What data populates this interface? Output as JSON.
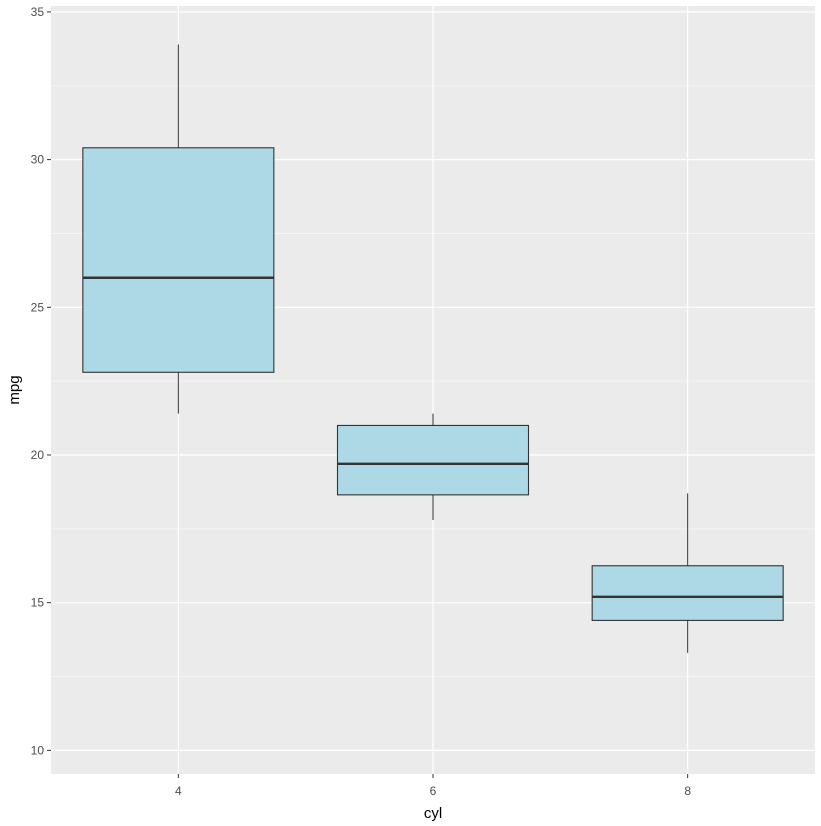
{
  "chart_data": {
    "type": "boxplot",
    "title": "",
    "xlabel": "cyl",
    "ylabel": "mpg",
    "categories": [
      "4",
      "6",
      "8"
    ],
    "ylim": [
      9.2,
      35.2
    ],
    "yticks": [
      10,
      15,
      20,
      25,
      30,
      35
    ],
    "ytick_labels": [
      "10",
      "15",
      "20",
      "25",
      "30",
      "35"
    ],
    "boxes": [
      {
        "category": "4",
        "whisker_low": 21.4,
        "q1": 22.8,
        "median": 26.0,
        "q3": 30.4,
        "whisker_high": 33.9
      },
      {
        "category": "6",
        "whisker_low": 17.8,
        "q1": 18.65,
        "median": 19.7,
        "q3": 21.0,
        "whisker_high": 21.4
      },
      {
        "category": "8",
        "whisker_low": 13.3,
        "q1": 14.4,
        "median": 15.2,
        "q3": 16.25,
        "whisker_high": 18.7
      }
    ],
    "grid": true,
    "legend": "none",
    "colors": {
      "panel_background": "#ebebeb",
      "grid_major": "#ffffff",
      "grid_minor": "#f7f7f7",
      "box_fill": "#add8e6",
      "box_line": "#333333",
      "tick_text": "#4d4d4d",
      "axis_title": "#000000"
    }
  }
}
